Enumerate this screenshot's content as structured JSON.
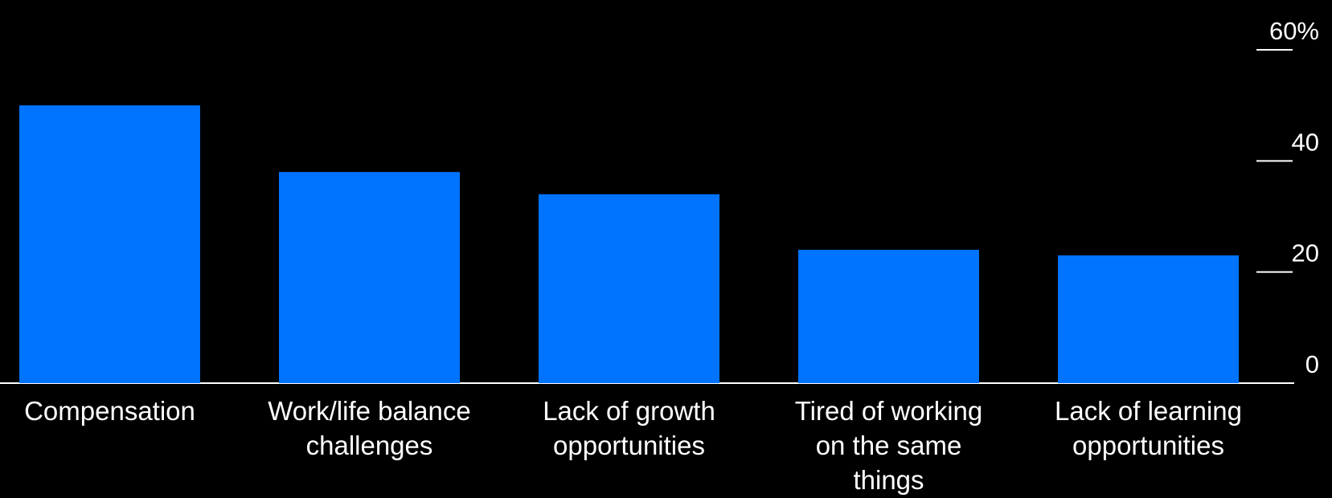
{
  "chart_data": {
    "type": "bar",
    "title": "",
    "xlabel": "",
    "ylabel": "",
    "categories": [
      [
        "Compensation"
      ],
      [
        "Work/life balance",
        "challenges"
      ],
      [
        "Lack of growth",
        "opportunities"
      ],
      [
        "Tired of working",
        "on the same",
        "things"
      ],
      [
        "Lack of learning",
        "opportunities"
      ]
    ],
    "values": [
      50,
      38,
      34,
      24,
      23
    ],
    "ylim": [
      0,
      60
    ],
    "yticks": [
      {
        "value": 0,
        "label": "0"
      },
      {
        "value": 20,
        "label": "20"
      },
      {
        "value": 40,
        "label": "40"
      },
      {
        "value": 60,
        "label": "60%"
      }
    ],
    "y_axis_side": "right",
    "grid": false,
    "colors": {
      "background": "#000000",
      "bar": "#0073FF",
      "text": "#FFFFFF",
      "axis": "#FFFFFF"
    }
  }
}
